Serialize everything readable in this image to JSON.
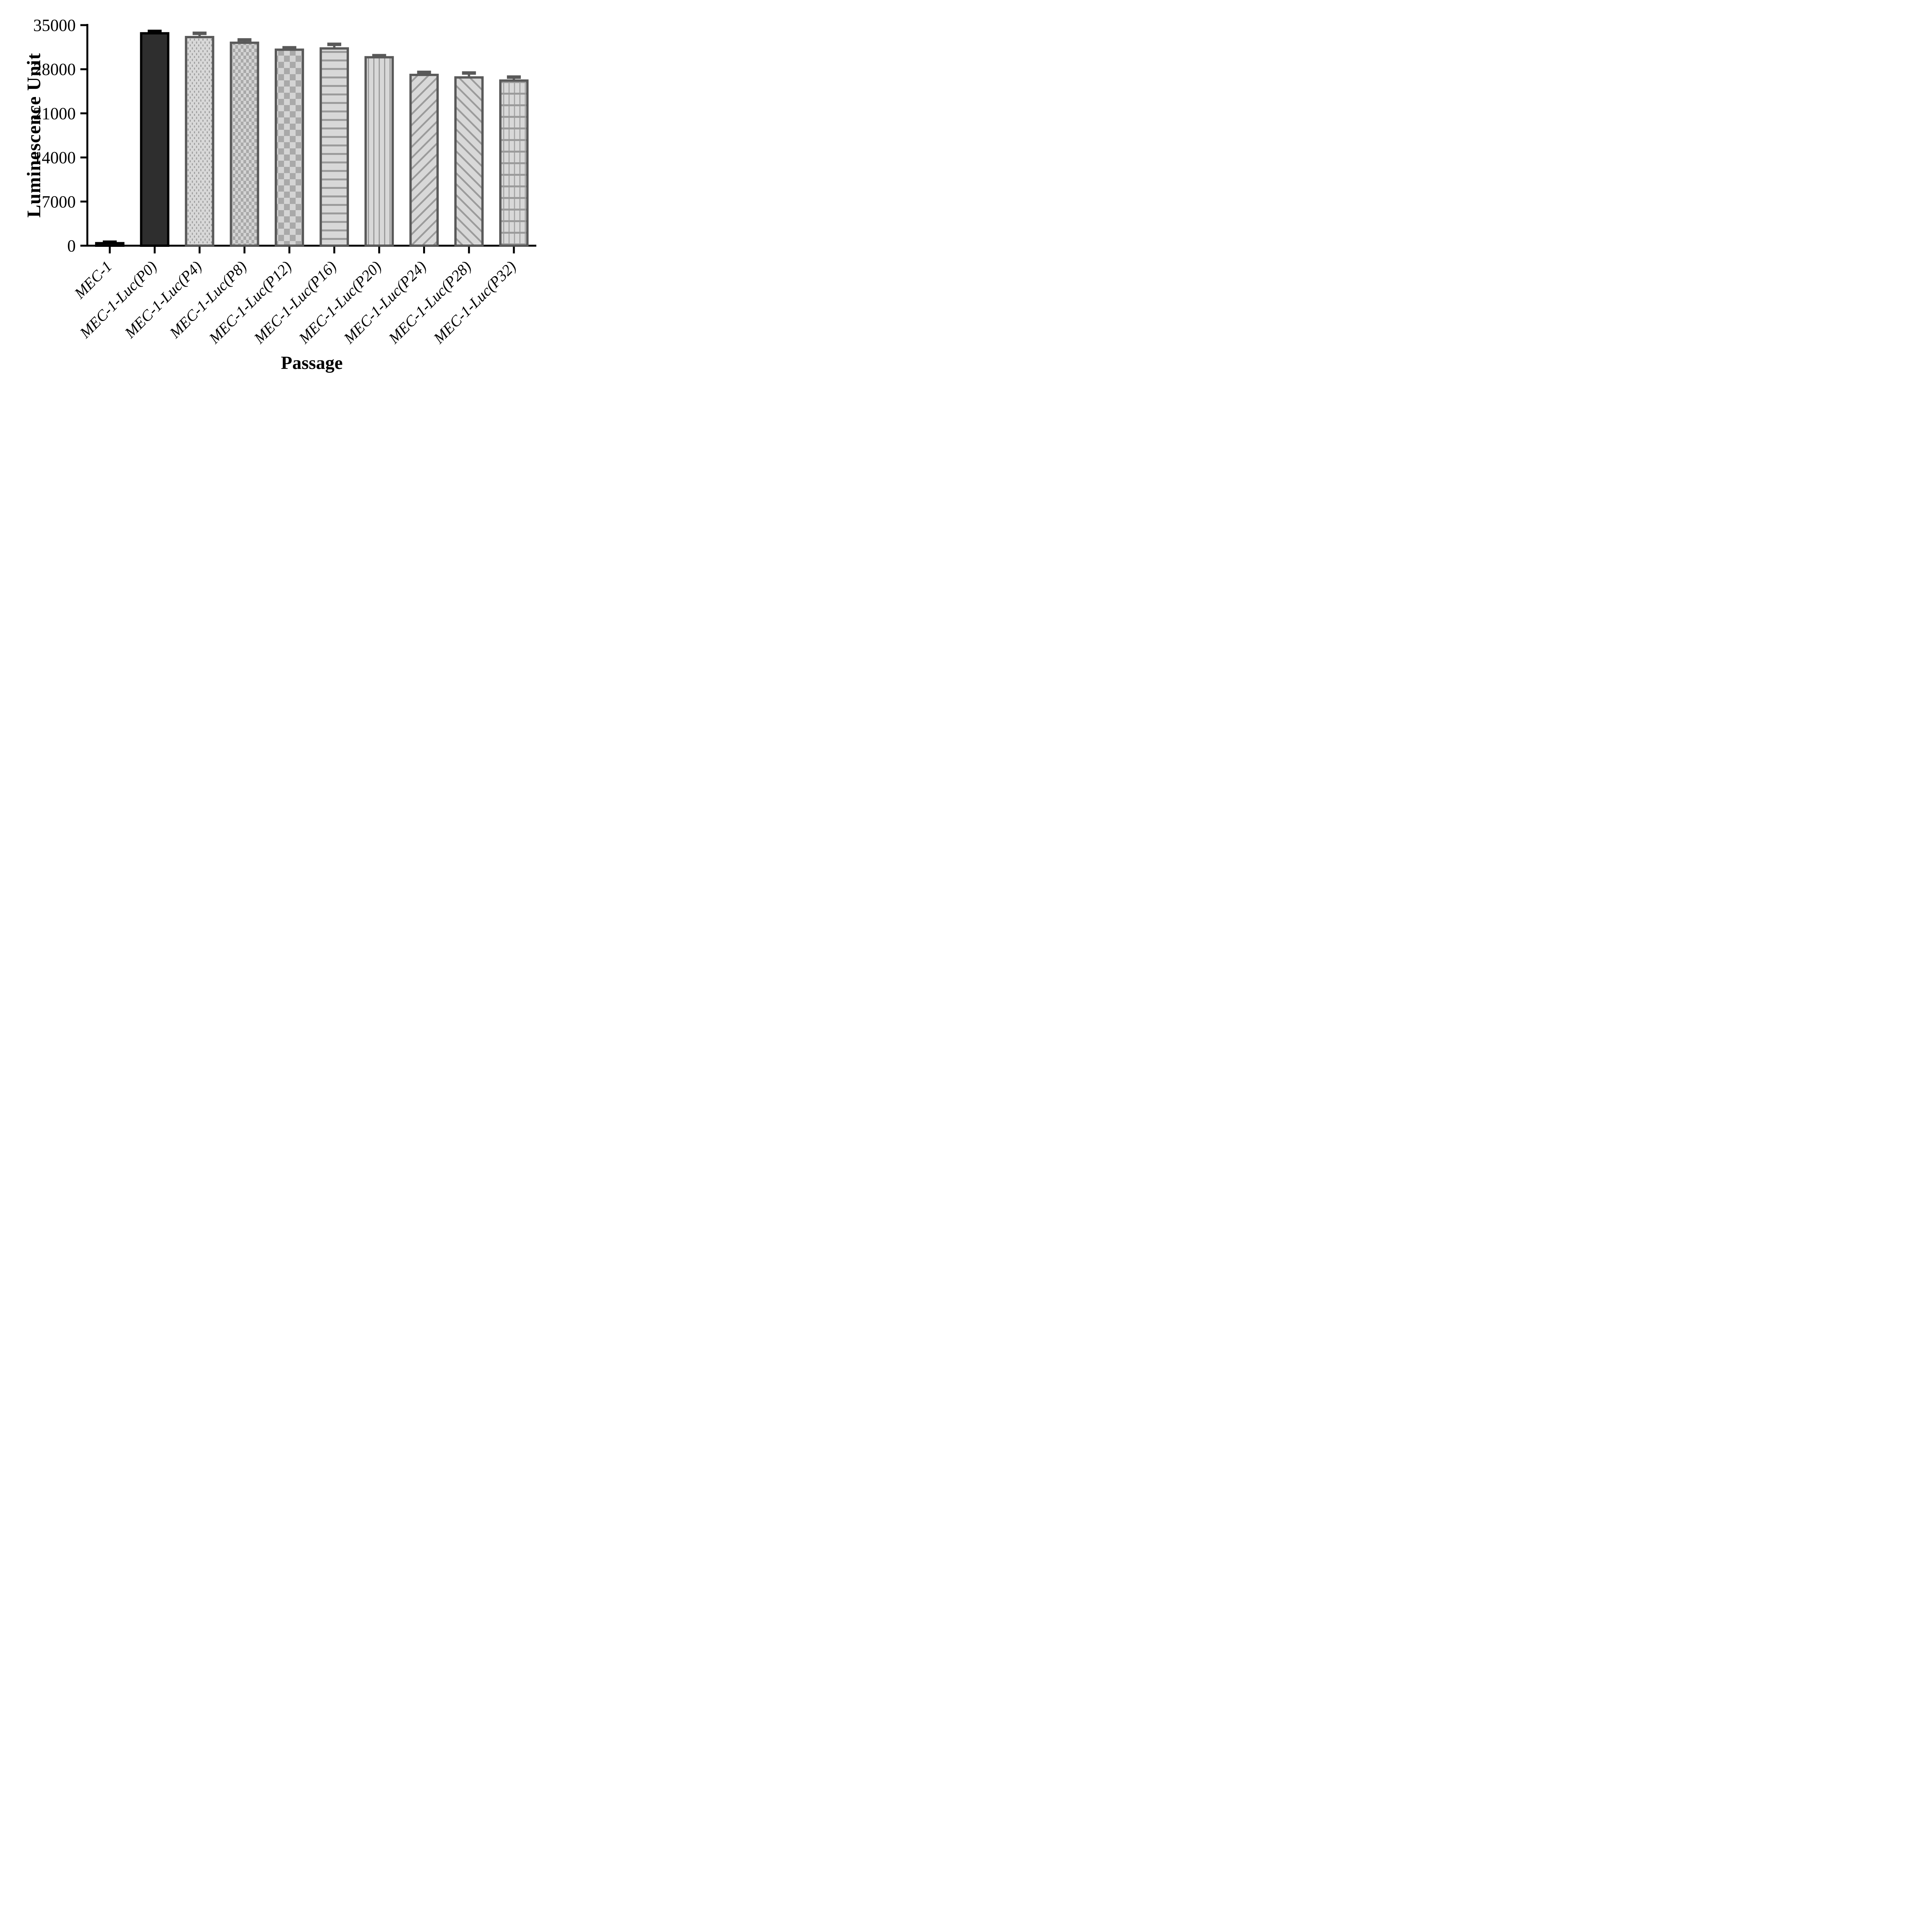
{
  "chart_data": {
    "type": "bar",
    "title": "",
    "xlabel": "Passage",
    "ylabel": "Luminescence Unit",
    "categories": [
      "MEC-1",
      "MEC-1-Luc(P0)",
      "MEC-1-Luc(P4)",
      "MEC-1-Luc(P8)",
      "MEC-1-Luc(P12)",
      "MEC-1-Luc(P16)",
      "MEC-1-Luc(P20)",
      "MEC-1-Luc(P24)",
      "MEC-1-Luc(P28)",
      "MEC-1-Luc(P32)"
    ],
    "values": [
      400,
      33700,
      33100,
      32200,
      31100,
      31300,
      29900,
      27100,
      26700,
      26200
    ],
    "errors": [
      150,
      300,
      600,
      450,
      300,
      650,
      250,
      400,
      700,
      550
    ],
    "y_ticks": [
      0,
      7000,
      14000,
      21000,
      28000,
      35000
    ],
    "ylim": [
      0,
      35000
    ],
    "grid": false,
    "legend": "none",
    "x_tick_label_style": "italic, rotated 45 degrees",
    "bar_styles": [
      {
        "pattern": "solid",
        "fill": "#141414",
        "stroke": "#000000"
      },
      {
        "pattern": "solid",
        "fill": "#2e2e2e",
        "stroke": "#000000"
      },
      {
        "pattern": "dots",
        "fill": "",
        "stroke": "#595959"
      },
      {
        "pattern": "checker-small",
        "fill": "",
        "stroke": "#595959"
      },
      {
        "pattern": "checker-large",
        "fill": "",
        "stroke": "#595959"
      },
      {
        "pattern": "hlines",
        "fill": "",
        "stroke": "#595959"
      },
      {
        "pattern": "vlines",
        "fill": "",
        "stroke": "#595959"
      },
      {
        "pattern": "diag-up",
        "fill": "",
        "stroke": "#595959"
      },
      {
        "pattern": "diag-down",
        "fill": "",
        "stroke": "#595959"
      },
      {
        "pattern": "grid",
        "fill": "",
        "stroke": "#595959"
      }
    ],
    "colors": {
      "axis": "#000000",
      "text": "#000000",
      "pattern_bg": "#d8d8d8",
      "pattern_fg": "#9b9b9b",
      "checker_dark": "#a9a9a9",
      "checker_light": "#d4d4d4",
      "bar_stroke": "#595959"
    }
  }
}
